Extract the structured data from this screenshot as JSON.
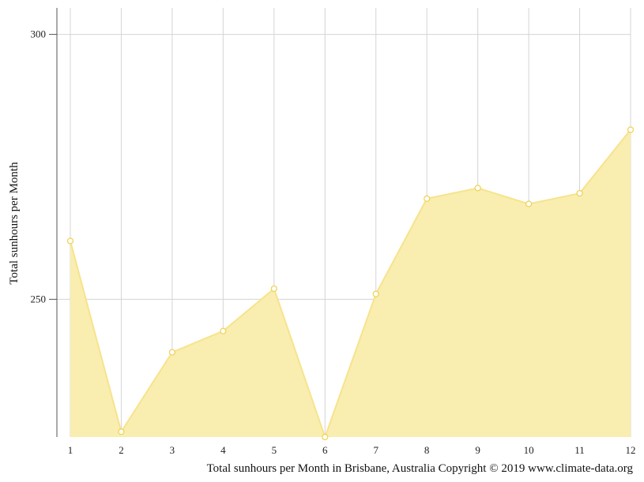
{
  "chart_data": {
    "type": "area",
    "x": [
      1,
      2,
      3,
      4,
      5,
      6,
      7,
      8,
      9,
      10,
      11,
      12
    ],
    "values": [
      261,
      225,
      240,
      244,
      252,
      224,
      251,
      269,
      271,
      268,
      270,
      282
    ],
    "title": "",
    "xlabel": "",
    "ylabel": "Total sunhours per Month",
    "ylim": [
      224,
      305
    ],
    "yticks": [
      250,
      300
    ],
    "grid": true,
    "legend": "none",
    "caption": "Total sunhours per Month in Brisbane, Australia Copyright © 2019 www.climate-data.org",
    "colors": {
      "fill": "#f9eeb0",
      "line": "#f7e38c",
      "marker_fill": "#ffffff",
      "marker_stroke": "#f0d050",
      "grid": "#d4d4d4",
      "axis": "#555555"
    }
  }
}
